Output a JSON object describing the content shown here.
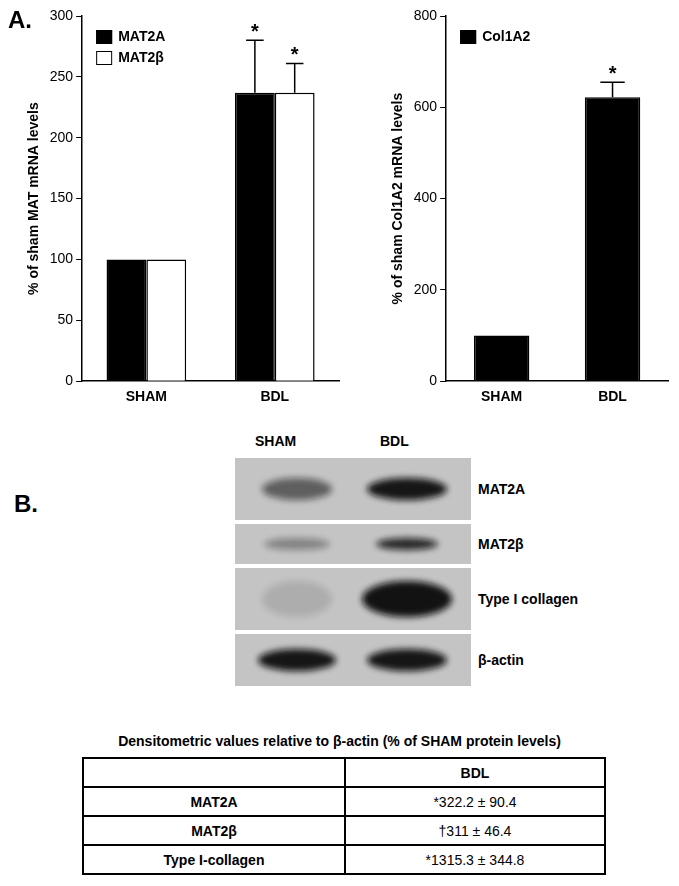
{
  "panel_labels": [
    "A.",
    "B."
  ],
  "chart_data": [
    {
      "type": "bar",
      "y_label": "% of sham MAT mRNA levels",
      "categories": [
        "SHAM",
        "BDL"
      ],
      "series": [
        {
          "name": "MAT2A",
          "color": "#000000",
          "values": [
            100,
            237
          ],
          "errors": [
            null,
            43
          ]
        },
        {
          "name": "MAT2β",
          "color": "#ffffff",
          "values": [
            100,
            237
          ],
          "errors": [
            null,
            24
          ]
        }
      ],
      "annotations": [
        {
          "series": "MAT2A",
          "category": "BDL",
          "text": "*"
        },
        {
          "series": "MAT2β",
          "category": "BDL",
          "text": "*"
        }
      ],
      "ylim": [
        0,
        300
      ],
      "yticks": [
        0,
        50,
        100,
        150,
        200,
        250,
        300
      ],
      "grid": false,
      "legend": "upper left"
    },
    {
      "type": "bar",
      "y_label": "% of sham Col1A2 mRNA levels",
      "categories": [
        "SHAM",
        "BDL"
      ],
      "series": [
        {
          "name": "Col1A2",
          "color": "#000000",
          "values": [
            100,
            622
          ],
          "errors": [
            null,
            33
          ]
        }
      ],
      "annotations": [
        {
          "series": "Col1A2",
          "category": "BDL",
          "text": "*"
        }
      ],
      "ylim": [
        0,
        800
      ],
      "yticks": [
        0,
        200,
        400,
        600,
        800
      ],
      "grid": false,
      "legend": "upper left"
    }
  ],
  "blot": {
    "lanes": [
      "SHAM",
      "BDL"
    ],
    "rows": [
      "MAT2A",
      "MAT2β",
      "Type I collagen",
      "β-actin"
    ]
  },
  "table": {
    "title": "Densitometric values relative to β-actin (% of SHAM protein levels)",
    "columns": [
      "BDL"
    ],
    "rows": [
      {
        "label": "MAT2A",
        "values": [
          "*322.2 ± 90.4"
        ]
      },
      {
        "label": "MAT2β",
        "values": [
          "†311 ± 46.4"
        ]
      },
      {
        "label": "Type I-collagen",
        "values": [
          "*1315.3 ± 344.8"
        ]
      }
    ]
  }
}
